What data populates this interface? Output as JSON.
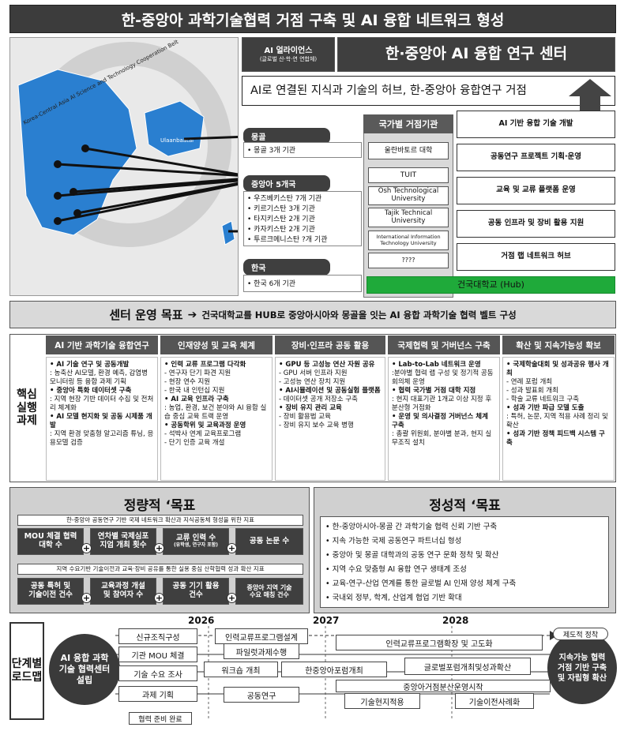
{
  "title": "한-중앙아 과학기술협력 거점 구축 및 AI 융합 네트워크 형성",
  "map": {
    "belt_label": "Korea-Central Asia AI Science and Technology Cooperation Belt",
    "city_label": "Ulaanbaatar"
  },
  "alliance": {
    "line1": "AI 얼라이언스",
    "line2": "(글로벌 산·학·연 연합체)"
  },
  "center_title": "한·중앙아 AI 융합 연구 센터",
  "hub_tagline": "AI로 연결된 지식과 기술의 허브, 한-중앙아 융합연구 거점",
  "regions": [
    {
      "label": "몽골",
      "items": [
        "• 몽골 3개 기관"
      ]
    },
    {
      "label": "중앙아 5개국",
      "items": [
        "• 우즈베키스탄 7개 기관",
        "• 키르기스탄 3개 기관",
        "• 타지키스탄 2개 기관",
        "• 카자키스탄 2개 기관",
        "• 투르크메니스탄 ?개 기관"
      ]
    },
    {
      "label": "한국",
      "items": [
        "• 한국 6개 기관"
      ]
    }
  ],
  "institutions": {
    "header": "국가별 거점기관",
    "list": [
      "울란바토르 대학",
      "TUIT",
      "Osh Technological University",
      "Tajik Technical University",
      "International Information Technology University",
      "????"
    ],
    "hub": "건국대학교 (Hub)"
  },
  "functions": [
    "AI 기반 융합 기술 개발",
    "공동연구 프로젝트 기획·운영",
    "교육 및 교류 플랫폼 운영",
    "공동 인프라 및 장비 활용 지원",
    "거점 랩 네트워크 허브"
  ],
  "goal_banner": {
    "label": "센터 운영 목표",
    "arrow": "➔",
    "text": "건국대학교를 HUB로 중앙아시아와 몽골을 잇는 AI 융합 과학기술 협력 벨트 구성"
  },
  "core_tasks": {
    "side_label": "핵심 실행 과제",
    "columns": [
      {
        "header": "AI 기반 과학기술 융합연구",
        "lines": [
          "• AI 기술 연구 및 공동개발",
          ": 농축산 AI모델, 환경 예측, 감염병 모니터링 등 융합 과제 기획",
          "• 중앙아 특화 데이터셋 구축",
          ": 지역 현장 기반 데이터 수집 및 전처리 체계화",
          "• AI 모델 현지화 및 공동 시제품 개발",
          ": 지역 환경 맞춤형 알고리즘 튜닝, 응용모델 검증"
        ]
      },
      {
        "header": "인재양성 및 교육 체계",
        "lines": [
          "• 인력 교류 프로그램 다각화",
          "- 연구자 단기 파견 지원",
          "- 현장 연수 지원",
          "- 한국 내 인턴십 지원",
          "• AI 교육 인프라 구축",
          ": 농업, 환경, 보건 분야와 AI 융합 실습 중심 교육 트랙 운영",
          "• 공동학위 및 교육과정 운영",
          "- 석박사 연계 교육프로그램",
          "- 단기 인증 교육 개설"
        ]
      },
      {
        "header": "장비·인프라 공동 활용",
        "lines": [
          "• GPU 등 고성능 연산 자원 공유",
          "- GPU 서버 인프라 지원",
          "- 고성능 연산 장치 지원",
          "• AI시뮬레이션 및 공동실험 플랫폼",
          "- 데이터셋 공개 저장소 구축",
          "• 장비 유지 관리 교육",
          "- 장비 활용법 교육",
          "- 장비 유지 보수 교육 병행"
        ]
      },
      {
        "header": "국제협력 및 거버넌스 구축",
        "lines": [
          "• Lab-to-Lab 네트워크 운영",
          ":분야별 협력 랩 구성 및 정기적 공동 회의체 운영",
          "• 협력 국가별 거점 대학 지정",
          ": 현지 대표기관 1개교 이상 지정 후 분산형 거점화",
          "• 운영 및 의사결정 거버넌스 체계 구축",
          ": 총괄 위원회, 분야별 분과, 현지 실무조직 설치"
        ]
      },
      {
        "header": "확산 및 지속가능성 확보",
        "lines": [
          "• 국제학술대회 및 성과공유 행사 개최",
          "- 연례 포럼 개최",
          "- 성과 발표회 개최",
          "- 학술 교류 네트워크 구축",
          "• 성과 기반 파급 모델 도출",
          ": 특허, 논문, 지역 적용 사례 정리 및 확산",
          "• 성과 기반 정책 피드백 시스템 구축"
        ]
      }
    ]
  },
  "quant": {
    "header": "정량적 ‘목표",
    "sub1": "한-중앙아 공동연구 기반 국제 네트워크 확산과 지식공동체 형성을 위한 지표",
    "row1": [
      {
        "l1": "MOU 체결 협력",
        "l2": "대학 수"
      },
      {
        "l1": "연차별 국제심포",
        "l2": "지엄 개최 횟수"
      },
      {
        "l1": "교류 인력 수",
        "l2": "(유학생, 연구자 포함)"
      },
      {
        "l1": "공동 논문 수",
        "l2": ""
      }
    ],
    "sub2": "지역 수요기반 기술이전과 교육·장비 공유를 통한 실용 중심 산학협력 성과 확산 지표",
    "row2": [
      {
        "l1": "공동 특허 및",
        "l2": "기술이전 건수"
      },
      {
        "l1": "교육과정 개설",
        "l2": "및 참여자 수"
      },
      {
        "l1": "공동 기기 활용",
        "l2": "건수"
      },
      {
        "l1": "중앙아 지역 기술",
        "l2": "수요 매칭 건수"
      }
    ],
    "plus": "+"
  },
  "qual": {
    "header": "정성적 ‘목표",
    "items": [
      "• 한-중앙아시아-몽골 간 과학기술 협력 신뢰 기반 구축",
      "• 지속 가능한 국제 공동연구 파트너십 형성",
      "• 중앙아 및 몽골 대학과의 공동 연구 문화 정착 및 확산",
      "• 지역 수요 맞춤형 AI 융합 연구 생태계 조성",
      "• 교육-연구-산업 연계를 통한 글로벌 AI 인재 양성 체계 구축",
      "• 국내외 정부, 학계, 산업계 협업 기반 확대"
    ]
  },
  "roadmap": {
    "side_label": "단계별 로드맵",
    "years": [
      "2026",
      "2027",
      "2028"
    ],
    "start": "AI 융합 과학기술 협력센터 설립",
    "end": "지속가능 협력거점 기반 구축 및 자립형 확산",
    "tasks": [
      "신규조직구성",
      "기관 MOU 체결",
      "기술 수요 조사",
      "과제 기획",
      "협력 준비 완료",
      "인력교류프로그램설계",
      "파일럿과제수행",
      "워크숍 개최",
      "한중앙아포럼개최",
      "공동연구",
      "인력교류프로그램확장 및 고도화",
      "글로벌포럼개최및성과확산",
      "중앙아거점분산운영시작",
      "기술현지적용",
      "기술이전사례화",
      "제도적 정착"
    ]
  }
}
